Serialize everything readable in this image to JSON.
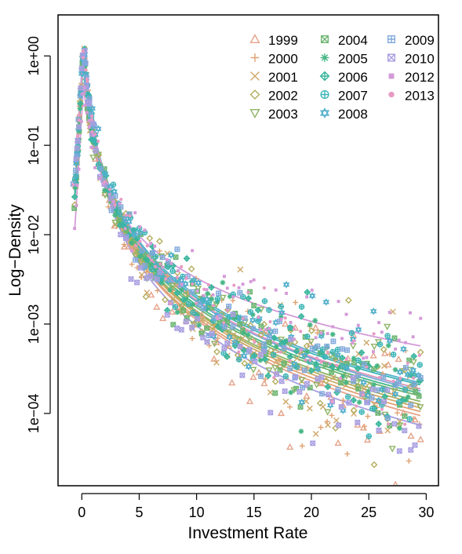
{
  "chart_data": {
    "type": "scatter",
    "xlabel": "Investment Rate",
    "ylabel": "Log−Density",
    "xlim": [
      -2,
      31
    ],
    "ylim_log10": [
      -4.8,
      0.45
    ],
    "y_scale": "log",
    "x_ticks": [
      0,
      5,
      10,
      15,
      20,
      25,
      30
    ],
    "x_tick_labels": [
      "0",
      "5",
      "10",
      "15",
      "20",
      "25",
      "30"
    ],
    "y_ticks": [
      1,
      0.1,
      0.01,
      0.001,
      0.0001
    ],
    "y_tick_labels": [
      "1e+00",
      "1e−01",
      "1e−02",
      "1e−03",
      "1e−04"
    ],
    "grid": false,
    "legend_position": "top-right",
    "series": [
      {
        "name": "1999",
        "marker": "triangle",
        "color": "#E5A38A",
        "peak": 1.3,
        "tail_at_30": 9e-05,
        "spread": 0.5
      },
      {
        "name": "2000",
        "marker": "plus",
        "color": "#E0A273",
        "peak": 1.2,
        "tail_at_30": 0.0001,
        "spread": 0.5
      },
      {
        "name": "2001",
        "marker": "cross",
        "color": "#CFA869",
        "peak": 1.25,
        "tail_at_30": 0.00011,
        "spread": 0.5
      },
      {
        "name": "2002",
        "marker": "diamond",
        "color": "#B4AE5E",
        "peak": 1.2,
        "tail_at_30": 0.00012,
        "spread": 0.45
      },
      {
        "name": "2003",
        "marker": "triangle-down",
        "color": "#8FB466",
        "peak": 1.1,
        "tail_at_30": 0.00013,
        "spread": 0.45
      },
      {
        "name": "2004",
        "marker": "square-x",
        "color": "#6BB570",
        "peak": 1.05,
        "tail_at_30": 0.00015,
        "spread": 0.4
      },
      {
        "name": "2005",
        "marker": "star",
        "color": "#45B685",
        "peak": 1.1,
        "tail_at_30": 0.00016,
        "spread": 0.4
      },
      {
        "name": "2006",
        "marker": "diamond-plus",
        "color": "#37B59C",
        "peak": 1.1,
        "tail_at_30": 0.00018,
        "spread": 0.4
      },
      {
        "name": "2007",
        "marker": "circle-plus",
        "color": "#3BB4B6",
        "peak": 1.2,
        "tail_at_30": 0.0002,
        "spread": 0.4
      },
      {
        "name": "2008",
        "marker": "hexagram",
        "color": "#52B0CC",
        "peak": 1.3,
        "tail_at_30": 0.00021,
        "spread": 0.4
      },
      {
        "name": "2009",
        "marker": "square-plus",
        "color": "#81A8DC",
        "peak": 1.4,
        "tail_at_30": 0.00017,
        "spread": 0.4
      },
      {
        "name": "2010",
        "marker": "square-x",
        "color": "#A89FE2",
        "peak": 1.45,
        "tail_at_30": 7e-05,
        "spread": 0.4
      },
      {
        "name": "2012",
        "marker": "square",
        "color": "#D49AD8",
        "peak": 0.48,
        "tail_at_30": 0.00055,
        "spread": 0.35
      },
      {
        "name": "2013",
        "marker": "circle",
        "color": "#E79AC3",
        "peak": 1.3,
        "tail_at_30": 0.00018,
        "spread": 0.4
      }
    ]
  }
}
